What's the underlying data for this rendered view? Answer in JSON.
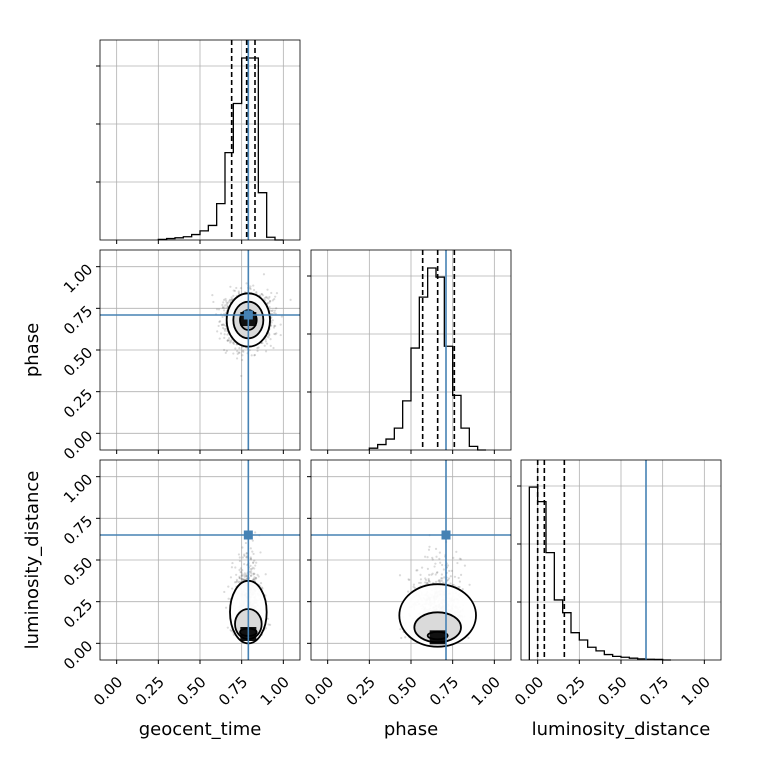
{
  "chart_data": {
    "type": "corner",
    "parameters": [
      "geocent_time",
      "phase",
      "luminosity_distance"
    ],
    "axis_labels": {
      "x": [
        "geocent_time",
        "phase",
        "luminosity_distance"
      ],
      "y": [
        "",
        "phase",
        "luminosity_distance"
      ]
    },
    "tick_values": [
      0.0,
      0.25,
      0.5,
      0.75,
      1.0
    ],
    "tick_labels": [
      "0.00",
      "0.25",
      "0.50",
      "0.75",
      "1.00"
    ],
    "axis_range": [
      -0.1,
      1.1
    ],
    "truths": {
      "geocent_time": 0.79,
      "phase": 0.71,
      "luminosity_distance": 0.65
    },
    "quantiles": {
      "geocent_time": [
        0.69,
        0.78,
        0.83
      ],
      "phase": [
        0.57,
        0.66,
        0.76
      ],
      "luminosity_distance": [
        0.0,
        0.04,
        0.16
      ]
    },
    "histograms": {
      "geocent_time": {
        "bin_edges": [
          0.25,
          0.3,
          0.35,
          0.4,
          0.45,
          0.5,
          0.55,
          0.6,
          0.65,
          0.7,
          0.75,
          0.8,
          0.85,
          0.9,
          0.95,
          1.0
        ],
        "counts": [
          0.003,
          0.008,
          0.012,
          0.018,
          0.03,
          0.05,
          0.08,
          0.2,
          0.48,
          0.75,
          1.0,
          1.0,
          0.26,
          0.015,
          0.0
        ]
      },
      "phase": {
        "bin_edges": [
          0.25,
          0.3,
          0.35,
          0.4,
          0.45,
          0.5,
          0.55,
          0.6,
          0.65,
          0.7,
          0.75,
          0.8,
          0.85,
          0.9,
          0.95
        ],
        "counts": [
          0.01,
          0.03,
          0.06,
          0.12,
          0.27,
          0.56,
          0.84,
          1.0,
          0.95,
          0.57,
          0.3,
          0.12,
          0.02,
          0.0
        ]
      },
      "luminosity_distance": {
        "bin_edges": [
          -0.05,
          0.0,
          0.05,
          0.1,
          0.15,
          0.2,
          0.25,
          0.3,
          0.35,
          0.4,
          0.45,
          0.5,
          0.55,
          0.6,
          0.65,
          0.7,
          0.75,
          0.8
        ],
        "counts": [
          0.95,
          0.87,
          0.59,
          0.33,
          0.26,
          0.15,
          0.11,
          0.07,
          0.05,
          0.03,
          0.02,
          0.015,
          0.01,
          0.006,
          0.004,
          0.003,
          0.0
        ]
      }
    },
    "joint_2d": [
      {
        "x_param": "geocent_time",
        "y_param": "phase",
        "mean": [
          0.79,
          0.68
        ],
        "spread": [
          0.07,
          0.11
        ],
        "scatter_spread": [
          0.14,
          0.16
        ],
        "contour_radii": [
          [
            0.05,
            0.06
          ],
          [
            0.09,
            0.11
          ],
          [
            0.13,
            0.16
          ]
        ]
      },
      {
        "x_param": "geocent_time",
        "y_param": "luminosity_distance",
        "mean": [
          0.79,
          0.05
        ],
        "spread": [
          0.05,
          0.08
        ],
        "scatter_spread": [
          0.08,
          0.25
        ],
        "contour_radii": [
          [
            0.05,
            0.03
          ],
          [
            0.08,
            0.12
          ],
          [
            0.11,
            0.25
          ]
        ]
      },
      {
        "x_param": "phase",
        "y_param": "luminosity_distance",
        "mean": [
          0.66,
          0.03
        ],
        "spread": [
          0.1,
          0.07
        ],
        "scatter_spread": [
          0.14,
          0.25
        ],
        "contour_radii": [
          [
            0.06,
            0.03
          ],
          [
            0.14,
            0.12
          ],
          [
            0.23,
            0.25
          ]
        ]
      }
    ],
    "grid": true,
    "colors": {
      "truth": "#4682b4",
      "hist": "#000000",
      "scatter": "#555555",
      "fill": "#aaaaaa"
    }
  }
}
